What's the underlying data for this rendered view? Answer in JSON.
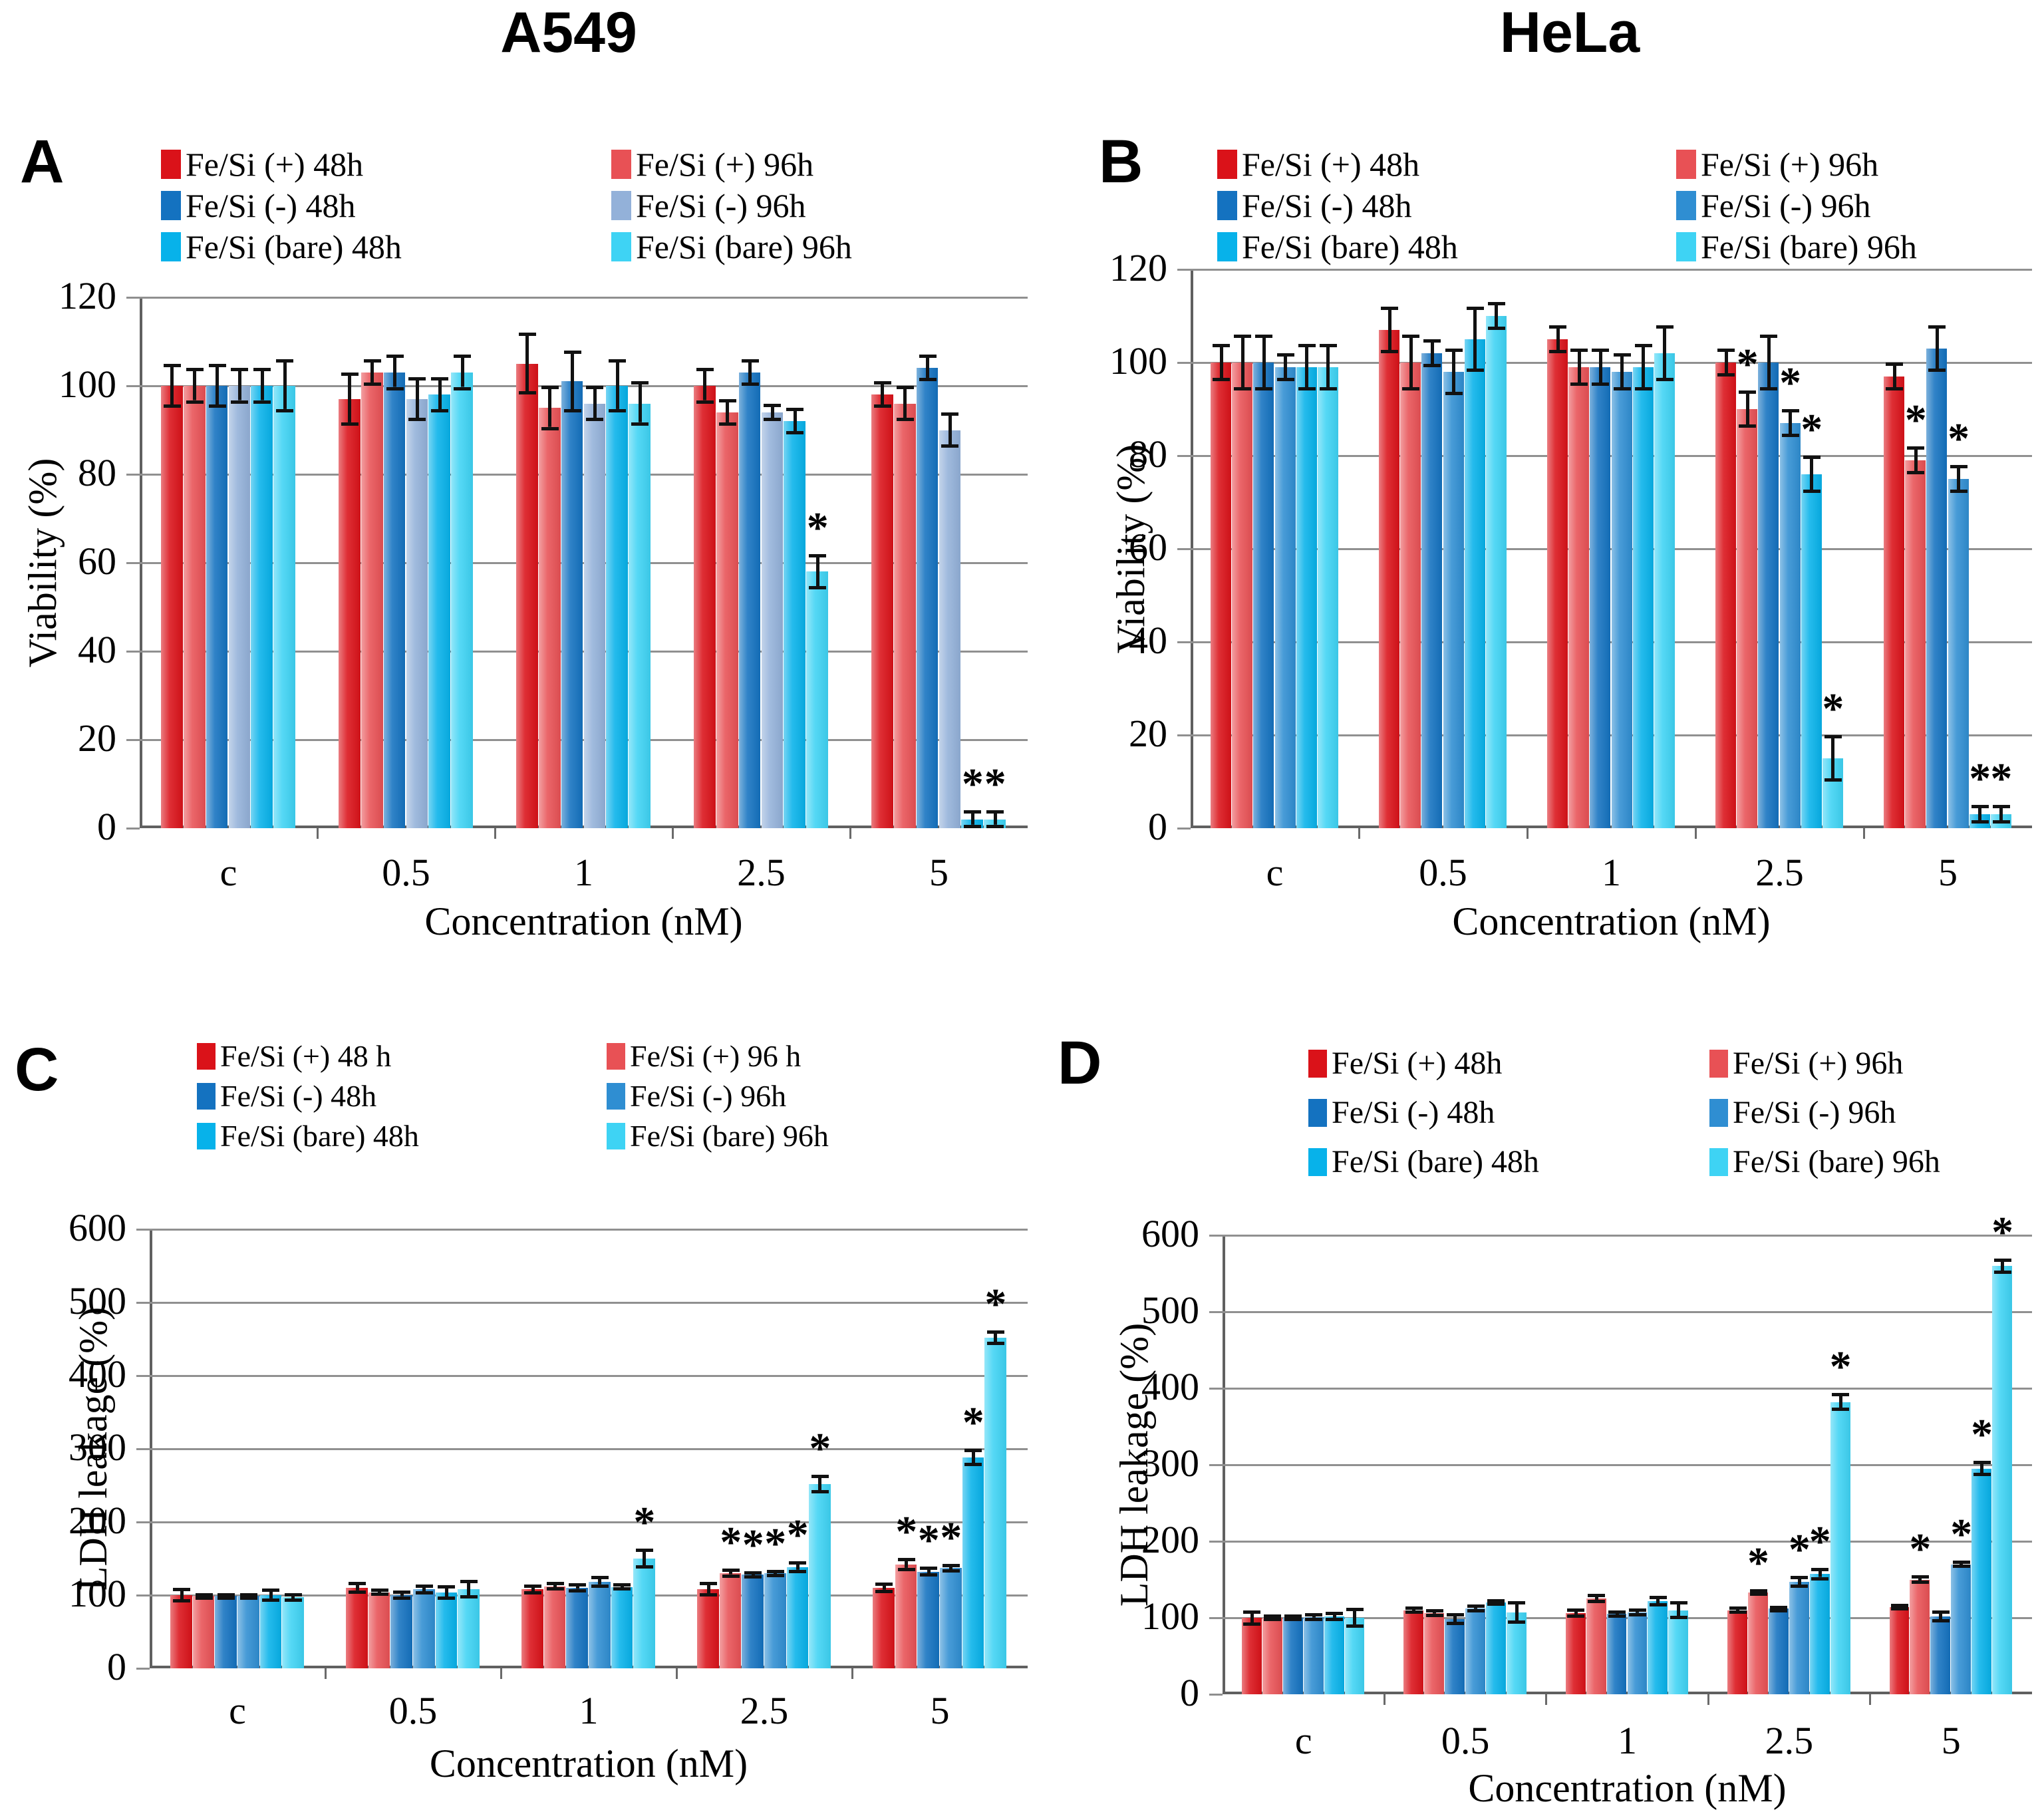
{
  "figure_titles": {
    "left": "A549",
    "right": "HeLa"
  },
  "colors": {
    "pos48": "#da1219",
    "pos96": "#e85155",
    "neg48": "#1472c0",
    "neg96_pale": "#93b1d9",
    "neg96": "#2f8ed2",
    "bare48": "#07b2ea",
    "bare96": "#3ed3f4",
    "error_bar": "#111111",
    "gridline": "#909090",
    "axis": "#606060"
  },
  "series_names": [
    "Fe/Si (+) 48h",
    "Fe/Si (+) 96h",
    "Fe/Si (-) 48h",
    "Fe/Si (-) 96h",
    "Fe/Si (bare) 48h",
    "Fe/Si (bare) 96h"
  ],
  "chart_data": [
    {
      "panel": "A",
      "cell_line": "A549",
      "type": "bar",
      "ylabel": "Viability (%)",
      "xlabel": "Concentration (nM)",
      "ylim": [
        0,
        120
      ],
      "yticks": [
        0,
        20,
        40,
        60,
        80,
        100,
        120
      ],
      "categories": [
        "c",
        "0.5",
        "1",
        "2.5",
        "5"
      ],
      "legend_col1": [
        "Fe/Si (+) 48h",
        "Fe/Si (-) 48h",
        "Fe/Si (bare) 48h"
      ],
      "legend_col2": [
        "Fe/Si (+) 96h",
        "Fe/Si (-) 96h",
        "Fe/Si (bare) 96h"
      ],
      "series": [
        {
          "name": "Fe/Si (+) 48h",
          "color": "pos48",
          "values": [
            100,
            97,
            105,
            100,
            98
          ],
          "errors": [
            5,
            6,
            7,
            4,
            3
          ],
          "sig": [
            0,
            0,
            0,
            0,
            0
          ]
        },
        {
          "name": "Fe/Si (+) 96h",
          "color": "pos96",
          "values": [
            100,
            103,
            95,
            94,
            96
          ],
          "errors": [
            4,
            3,
            5,
            3,
            4
          ],
          "sig": [
            0,
            0,
            0,
            0,
            0
          ]
        },
        {
          "name": "Fe/Si (-) 48h",
          "color": "neg48",
          "values": [
            100,
            103,
            101,
            103,
            104
          ],
          "errors": [
            5,
            4,
            7,
            3,
            3
          ],
          "sig": [
            0,
            0,
            0,
            0,
            0
          ]
        },
        {
          "name": "Fe/Si (-) 96h",
          "color": "neg96_pale",
          "values": [
            100,
            97,
            96,
            94,
            90
          ],
          "errors": [
            4,
            5,
            4,
            2,
            4
          ],
          "sig": [
            0,
            0,
            0,
            0,
            0
          ]
        },
        {
          "name": "Fe/Si (bare) 48h",
          "color": "bare48",
          "values": [
            100,
            98,
            100,
            92,
            2
          ],
          "errors": [
            4,
            4,
            6,
            3,
            2
          ],
          "sig": [
            0,
            0,
            0,
            0,
            1
          ]
        },
        {
          "name": "Fe/Si (bare) 96h",
          "color": "bare96",
          "values": [
            100,
            103,
            96,
            58,
            2
          ],
          "errors": [
            6,
            4,
            5,
            4,
            2
          ],
          "sig": [
            0,
            0,
            0,
            1,
            1
          ]
        }
      ]
    },
    {
      "panel": "B",
      "cell_line": "HeLa",
      "type": "bar",
      "ylabel": "Viability (%)",
      "xlabel": "Concentration (nM)",
      "ylim": [
        0,
        120
      ],
      "yticks": [
        0,
        20,
        40,
        60,
        80,
        100,
        120
      ],
      "categories": [
        "c",
        "0.5",
        "1",
        "2.5",
        "5"
      ],
      "legend_col1": [
        "Fe/Si (+) 48h",
        "Fe/Si (-) 48h",
        "Fe/Si (bare) 48h"
      ],
      "legend_col2": [
        "Fe/Si (+) 96h",
        "Fe/Si (-) 96h",
        "Fe/Si (bare) 96h"
      ],
      "series": [
        {
          "name": "Fe/Si (+) 48h",
          "color": "pos48",
          "values": [
            100,
            107,
            105,
            100,
            97
          ],
          "errors": [
            4,
            5,
            3,
            3,
            3
          ],
          "sig": [
            0,
            0,
            0,
            0,
            0
          ]
        },
        {
          "name": "Fe/Si (+) 96h",
          "color": "pos96",
          "values": [
            100,
            100,
            99,
            90,
            79
          ],
          "errors": [
            6,
            6,
            4,
            4,
            3
          ],
          "sig": [
            0,
            0,
            0,
            1,
            1
          ]
        },
        {
          "name": "Fe/Si (-) 48h",
          "color": "neg48",
          "values": [
            100,
            102,
            99,
            100,
            103
          ],
          "errors": [
            6,
            3,
            4,
            6,
            5
          ],
          "sig": [
            0,
            0,
            0,
            0,
            0
          ]
        },
        {
          "name": "Fe/Si (-) 96h",
          "color": "neg96",
          "values": [
            99,
            98,
            98,
            87,
            75
          ],
          "errors": [
            3,
            5,
            4,
            3,
            3
          ],
          "sig": [
            0,
            0,
            0,
            1,
            1
          ]
        },
        {
          "name": "Fe/Si (bare) 48h",
          "color": "bare48",
          "values": [
            99,
            105,
            99,
            76,
            3
          ],
          "errors": [
            5,
            7,
            5,
            4,
            2
          ],
          "sig": [
            0,
            0,
            0,
            1,
            1
          ]
        },
        {
          "name": "Fe/Si (bare) 96h",
          "color": "bare96",
          "values": [
            99,
            110,
            102,
            15,
            3
          ],
          "errors": [
            5,
            3,
            6,
            5,
            2
          ],
          "sig": [
            0,
            0,
            0,
            1,
            1
          ]
        }
      ]
    },
    {
      "panel": "C",
      "cell_line": "A549",
      "type": "bar",
      "ylabel": "LDH leakage (%)",
      "xlabel": "Concentration (nM)",
      "ylim": [
        0,
        600
      ],
      "yticks": [
        0,
        100,
        200,
        300,
        400,
        500,
        600
      ],
      "categories": [
        "c",
        "0.5",
        "1",
        "2.5",
        "5"
      ],
      "legend_col1": [
        "Fe/Si (+) 48 h",
        "Fe/Si (-) 48h",
        "Fe/Si (bare) 48h"
      ],
      "legend_col2": [
        "Fe/Si (+) 96 h",
        "Fe/Si (-) 96h",
        "Fe/Si (bare) 96h"
      ],
      "series": [
        {
          "name": "Fe/Si (+) 48h",
          "color": "pos48",
          "values": [
            100,
            110,
            108,
            108,
            110
          ],
          "errors": [
            10,
            8,
            7,
            10,
            7
          ],
          "sig": [
            0,
            0,
            0,
            0,
            0
          ]
        },
        {
          "name": "Fe/Si (+) 96h",
          "color": "pos96",
          "values": [
            99,
            104,
            112,
            130,
            142
          ],
          "errors": [
            4,
            5,
            6,
            6,
            9
          ],
          "sig": [
            0,
            0,
            0,
            1,
            1
          ]
        },
        {
          "name": "Fe/Si (-) 48h",
          "color": "neg48",
          "values": [
            99,
            100,
            110,
            128,
            132
          ],
          "errors": [
            4,
            6,
            6,
            5,
            7
          ],
          "sig": [
            0,
            0,
            0,
            1,
            1
          ]
        },
        {
          "name": "Fe/Si (-) 96h",
          "color": "neg96",
          "values": [
            99,
            108,
            118,
            130,
            137
          ],
          "errors": [
            4,
            7,
            8,
            5,
            6
          ],
          "sig": [
            0,
            0,
            0,
            1,
            1
          ]
        },
        {
          "name": "Fe/Si (bare) 48h",
          "color": "bare48",
          "values": [
            100,
            104,
            111,
            138,
            288
          ],
          "errors": [
            9,
            10,
            5,
            8,
            12
          ],
          "sig": [
            0,
            0,
            0,
            1,
            1
          ]
        },
        {
          "name": "Fe/Si (bare) 96h",
          "color": "bare96",
          "values": [
            97,
            108,
            150,
            252,
            452
          ],
          "errors": [
            6,
            13,
            14,
            13,
            10
          ],
          "sig": [
            0,
            0,
            1,
            1,
            1
          ]
        }
      ]
    },
    {
      "panel": "D",
      "cell_line": "HeLa",
      "type": "bar",
      "ylabel": "LDH leakage (%)",
      "xlabel": "Concentration (nM)",
      "ylim": [
        0,
        600
      ],
      "yticks": [
        0,
        100,
        200,
        300,
        400,
        500,
        600
      ],
      "categories": [
        "c",
        "0.5",
        "1",
        "2.5",
        "5"
      ],
      "legend_col1": [
        "Fe/Si (+) 48h",
        "Fe/Si (-) 48h",
        "Fe/Si (bare) 48h"
      ],
      "legend_col2": [
        "Fe/Si (+) 96h",
        "Fe/Si (-) 96h",
        "Fe/Si (bare) 96h"
      ],
      "series": [
        {
          "name": "Fe/Si (+) 48h",
          "color": "pos48",
          "values": [
            100,
            110,
            106,
            110,
            114
          ],
          "errors": [
            10,
            5,
            6,
            5,
            4
          ],
          "sig": [
            0,
            0,
            0,
            0,
            0
          ]
        },
        {
          "name": "Fe/Si (+) 96h",
          "color": "pos96",
          "values": [
            100,
            106,
            125,
            133,
            150
          ],
          "errors": [
            4,
            5,
            6,
            4,
            6
          ],
          "sig": [
            0,
            0,
            0,
            1,
            1
          ]
        },
        {
          "name": "Fe/Si (-) 48h",
          "color": "neg48",
          "values": [
            100,
            98,
            105,
            112,
            102
          ],
          "errors": [
            4,
            8,
            5,
            4,
            8
          ],
          "sig": [
            0,
            0,
            0,
            0,
            0
          ]
        },
        {
          "name": "Fe/Si (-) 96h",
          "color": "neg96",
          "values": [
            101,
            112,
            107,
            147,
            170
          ],
          "errors": [
            5,
            5,
            5,
            8,
            5
          ],
          "sig": [
            0,
            0,
            0,
            1,
            1
          ]
        },
        {
          "name": "Fe/Si (bare) 48h",
          "color": "bare48",
          "values": [
            102,
            120,
            122,
            157,
            295
          ],
          "errors": [
            6,
            4,
            7,
            8,
            10
          ],
          "sig": [
            0,
            0,
            0,
            1,
            1
          ]
        },
        {
          "name": "Fe/Si (bare) 96h",
          "color": "bare96",
          "values": [
            100,
            107,
            110,
            382,
            560
          ],
          "errors": [
            13,
            15,
            12,
            12,
            10
          ],
          "sig": [
            0,
            0,
            0,
            1,
            1
          ]
        }
      ]
    }
  ]
}
